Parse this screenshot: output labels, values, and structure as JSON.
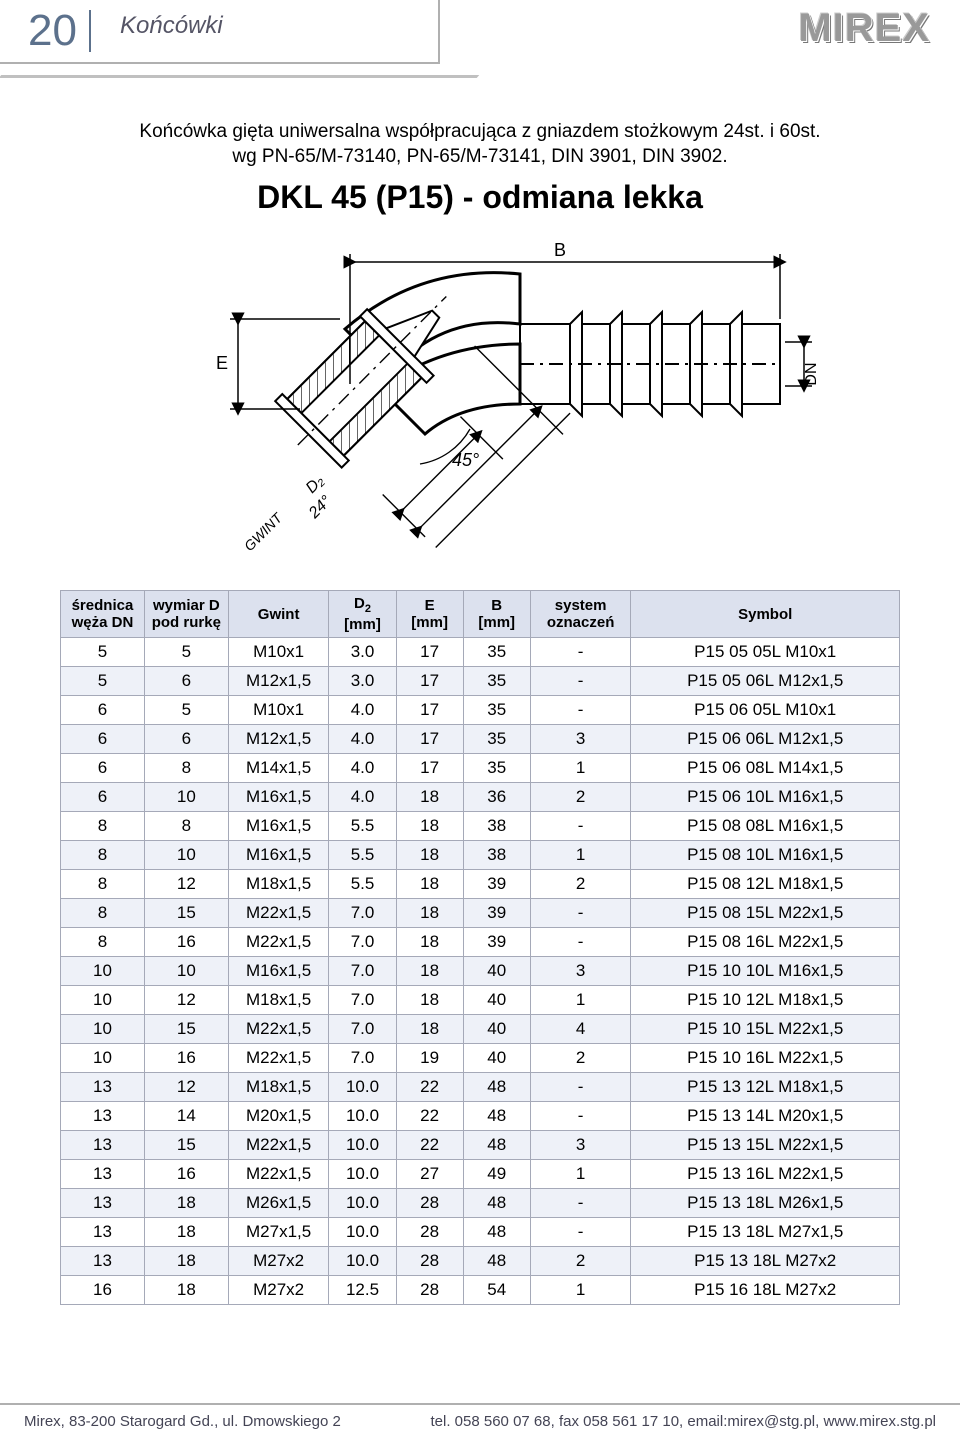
{
  "header": {
    "page_number": "20",
    "section": "Końcówki",
    "brand": "MIREX"
  },
  "desc_line1": "Końcówka gięta uniwersalna współpracująca z gniazdem stożkowym 24st. i 60st.",
  "desc_line2": "wg PN-65/M-73140, PN-65/M-73141, DIN 3901, DIN 3902.",
  "title": "DKL 45 (P15) - odmiana lekka",
  "diagram_labels": {
    "B": "B",
    "E": "E",
    "DN": "DN",
    "angle": "45°",
    "D2": "D₂",
    "d24": "24°",
    "gwint": "GWINT"
  },
  "table": {
    "columns": [
      "średnica\nwęża DN",
      "wymiar D\npod rurkę",
      "Gwint",
      "D₂\n[mm]",
      "E\n[mm]",
      "B\n[mm]",
      "system\noznaczeń",
      "Symbol"
    ],
    "col_widths_pct": [
      10,
      10,
      12,
      8,
      8,
      8,
      12,
      32
    ],
    "header_bg": "#dce1ee",
    "row_alt_bg": "#eef1f8",
    "border_color": "#a5a9b8",
    "rows": [
      [
        "5",
        "5",
        "M10x1",
        "3.0",
        "17",
        "35",
        "-",
        "P15 05 05L M10x1"
      ],
      [
        "5",
        "6",
        "M12x1,5",
        "3.0",
        "17",
        "35",
        "-",
        "P15 05 06L M12x1,5"
      ],
      [
        "6",
        "5",
        "M10x1",
        "4.0",
        "17",
        "35",
        "-",
        "P15 06 05L M10x1"
      ],
      [
        "6",
        "6",
        "M12x1,5",
        "4.0",
        "17",
        "35",
        "3",
        "P15 06 06L M12x1,5"
      ],
      [
        "6",
        "8",
        "M14x1,5",
        "4.0",
        "17",
        "35",
        "1",
        "P15 06 08L M14x1,5"
      ],
      [
        "6",
        "10",
        "M16x1,5",
        "4.0",
        "18",
        "36",
        "2",
        "P15 06 10L M16x1,5"
      ],
      [
        "8",
        "8",
        "M16x1,5",
        "5.5",
        "18",
        "38",
        "-",
        "P15 08 08L M16x1,5"
      ],
      [
        "8",
        "10",
        "M16x1,5",
        "5.5",
        "18",
        "38",
        "1",
        "P15 08 10L M16x1,5"
      ],
      [
        "8",
        "12",
        "M18x1,5",
        "5.5",
        "18",
        "39",
        "2",
        "P15 08 12L M18x1,5"
      ],
      [
        "8",
        "15",
        "M22x1,5",
        "7.0",
        "18",
        "39",
        "-",
        "P15 08 15L M22x1,5"
      ],
      [
        "8",
        "16",
        "M22x1,5",
        "7.0",
        "18",
        "39",
        "-",
        "P15 08 16L M22x1,5"
      ],
      [
        "10",
        "10",
        "M16x1,5",
        "7.0",
        "18",
        "40",
        "3",
        "P15 10 10L M16x1,5"
      ],
      [
        "10",
        "12",
        "M18x1,5",
        "7.0",
        "18",
        "40",
        "1",
        "P15 10 12L M18x1,5"
      ],
      [
        "10",
        "15",
        "M22x1,5",
        "7.0",
        "18",
        "40",
        "4",
        "P15 10 15L M22x1,5"
      ],
      [
        "10",
        "16",
        "M22x1,5",
        "7.0",
        "19",
        "40",
        "2",
        "P15 10 16L M22x1,5"
      ],
      [
        "13",
        "12",
        "M18x1,5",
        "10.0",
        "22",
        "48",
        "-",
        "P15 13 12L M18x1,5"
      ],
      [
        "13",
        "14",
        "M20x1,5",
        "10.0",
        "22",
        "48",
        "-",
        "P15 13 14L M20x1,5"
      ],
      [
        "13",
        "15",
        "M22x1,5",
        "10.0",
        "22",
        "48",
        "3",
        "P15 13 15L M22x1,5"
      ],
      [
        "13",
        "16",
        "M22x1,5",
        "10.0",
        "27",
        "49",
        "1",
        "P15 13 16L M22x1,5"
      ],
      [
        "13",
        "18",
        "M26x1,5",
        "10.0",
        "28",
        "48",
        "-",
        "P15 13 18L M26x1,5"
      ],
      [
        "13",
        "18",
        "M27x1,5",
        "10.0",
        "28",
        "48",
        "-",
        "P15 13 18L M27x1,5"
      ],
      [
        "13",
        "18",
        "M27x2",
        "10.0",
        "28",
        "48",
        "2",
        "P15 13 18L M27x2"
      ],
      [
        "16",
        "18",
        "M27x2",
        "12.5",
        "28",
        "54",
        "1",
        "P15 16 18L M27x2"
      ]
    ]
  },
  "footer": {
    "left": "Mirex, 83-200 Starogard Gd., ul. Dmowskiego 2",
    "right": "tel. 058 560 07 68, fax 058 561 17 10, email:mirex@stg.pl, www.mirex.stg.pl"
  }
}
